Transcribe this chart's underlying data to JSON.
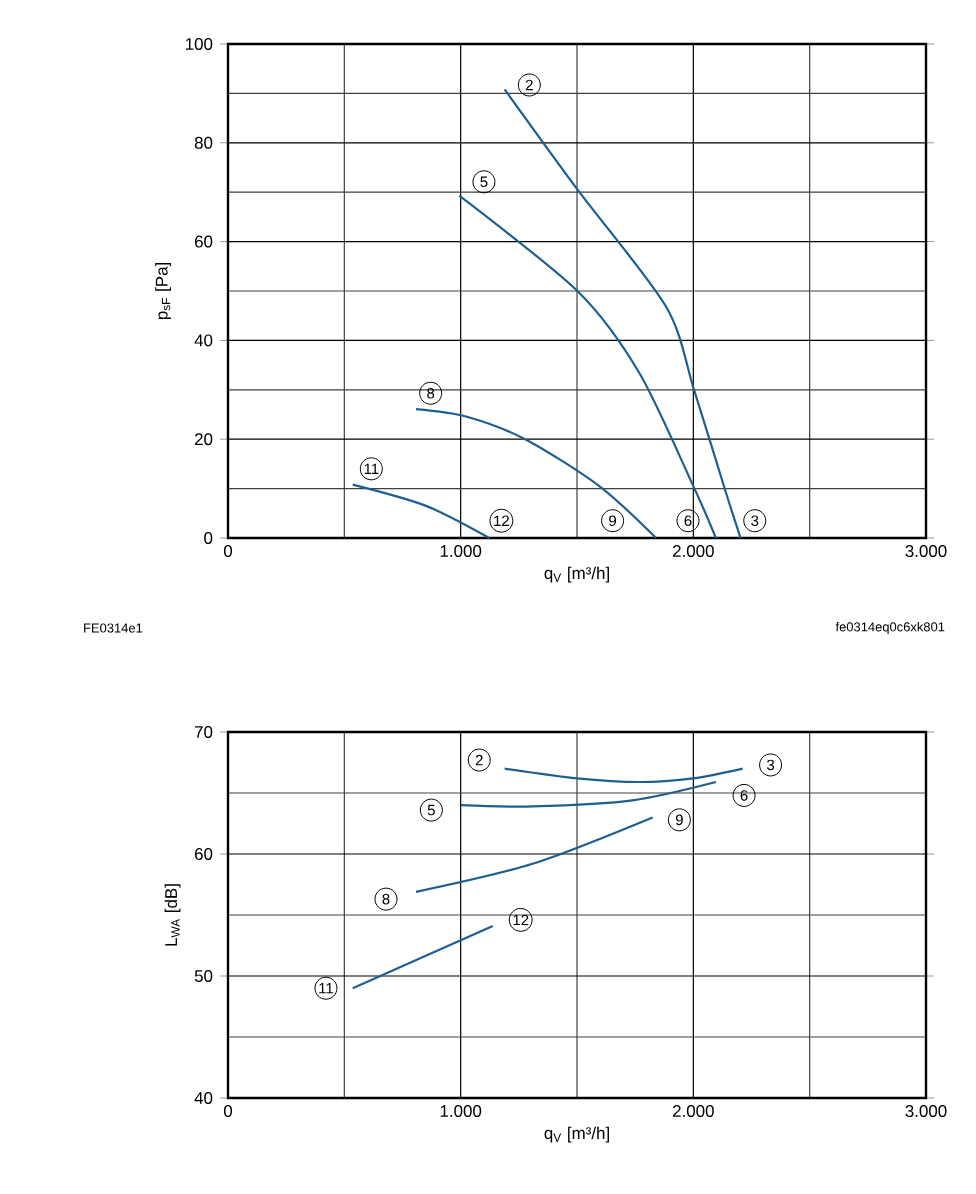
{
  "chart_data": [
    {
      "type": "line",
      "xlabel": "q$_{V}$ [m³/h]",
      "ylabel": "p$_{sF}$ [Pa]",
      "xlim": [
        0,
        3000
      ],
      "ylim": [
        0,
        100
      ],
      "xticks": [
        0,
        {
          "value": 1000,
          "label": "1.000"
        },
        {
          "value": 2000,
          "label": "2.000"
        },
        {
          "value": 3000,
          "label": "3.000"
        }
      ],
      "yticks": [
        0,
        20,
        40,
        60,
        80,
        100
      ],
      "grid": true,
      "marker": "none",
      "line_style": "solid",
      "series": [
        {
          "color": "#1f5f8f",
          "x": [
            1189,
            1504,
            1883,
            2003,
            2140,
            2203
          ],
          "values": [
            90.8,
            70.4,
            46.8,
            30,
            9.2,
            0
          ]
        },
        {
          "color": "#1f5f8f",
          "x": [
            994,
            1504,
            1768,
            2000,
            2097
          ],
          "values": [
            69.3,
            49.9,
            33.4,
            10.5,
            0
          ]
        },
        {
          "color": "#1f5f8f",
          "x": [
            808,
            1023,
            1281,
            1596,
            1840
          ],
          "values": [
            26.1,
            24.6,
            19.9,
            10.5,
            0
          ]
        },
        {
          "color": "#1f5f8f",
          "x": [
            536,
            851,
            1123
          ],
          "values": [
            10.8,
            6.5,
            0
          ]
        }
      ],
      "annotations": [
        {
          "text": "2",
          "x": 1295,
          "y": 91.7
        },
        {
          "text": "5",
          "x": 1100,
          "y": 72.1
        },
        {
          "text": "8",
          "x": 871,
          "y": 29.3
        },
        {
          "text": "11",
          "x": 616,
          "y": 14.0
        },
        {
          "text": "12",
          "x": 1175,
          "y": 3.5
        },
        {
          "text": "9",
          "x": 1653,
          "y": 3.5
        },
        {
          "text": "6",
          "x": 1977,
          "y": 3.5
        },
        {
          "text": "3",
          "x": 2264,
          "y": 3.5
        },
        "FE0314e1",
        "fe0314eq0c6xk801"
      ]
    },
    {
      "type": "line",
      "xlabel": "q$_{V}$ [m³/h]",
      "ylabel": "L$_{WA}$ [dB]",
      "xlim": [
        0,
        3000
      ],
      "ylim": [
        40,
        70
      ],
      "xticks": [
        0,
        {
          "value": 1000,
          "label": "1.000"
        },
        {
          "value": 2000,
          "label": "2.000"
        },
        {
          "value": 3000,
          "label": "3.000"
        }
      ],
      "yticks": [
        40,
        50,
        60,
        70
      ],
      "grid": true,
      "marker": "none",
      "line_style": "solid",
      "series": [
        {
          "color": "#1f5f8f",
          "x": [
            1189,
            1500,
            1768,
            2000,
            2212
          ],
          "values": [
            67.0,
            66.2,
            65.9,
            66.2,
            67.0
          ]
        },
        {
          "color": "#1f5f8f",
          "x": [
            1000,
            1309,
            1739,
            2097
          ],
          "values": [
            64.0,
            63.9,
            64.4,
            65.9
          ]
        },
        {
          "color": "#1f5f8f",
          "x": [
            808,
            1309,
            1825
          ],
          "values": [
            56.9,
            59.2,
            63.0
          ]
        },
        {
          "color": "#1f5f8f",
          "x": [
            536,
            1138
          ],
          "values": [
            49.0,
            54.1
          ]
        }
      ],
      "annotations": [
        {
          "text": "2",
          "x": 1080,
          "y": 67.7
        },
        {
          "text": "3",
          "x": 2332,
          "y": 67.3
        },
        {
          "text": "5",
          "x": 874,
          "y": 63.6
        },
        {
          "text": "6",
          "x": 2218,
          "y": 64.8
        },
        {
          "text": "9",
          "x": 1940,
          "y": 62.8
        },
        {
          "text": "8",
          "x": 679,
          "y": 56.3
        },
        {
          "text": "12",
          "x": 1258,
          "y": 54.6
        },
        {
          "text": "11",
          "x": 421,
          "y": 49.0
        }
      ]
    }
  ]
}
